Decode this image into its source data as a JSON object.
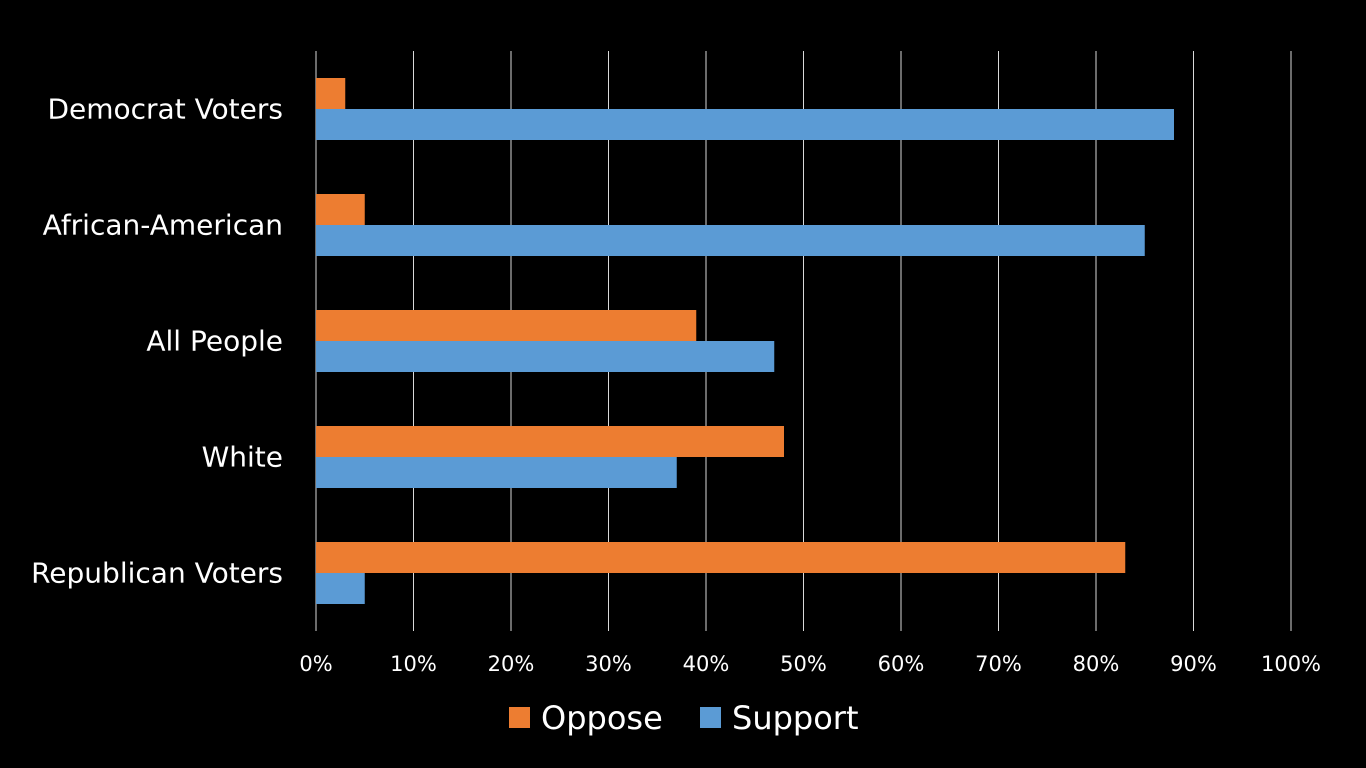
{
  "chart_data": {
    "type": "bar",
    "orientation": "horizontal",
    "categories": [
      "Democrat Voters",
      "African-American",
      "All People",
      "White",
      "Republican Voters"
    ],
    "series": [
      {
        "name": "Oppose",
        "color": "#ed7d31",
        "values": [
          3,
          5,
          39,
          48,
          83
        ]
      },
      {
        "name": "Support",
        "color": "#5b9bd5",
        "values": [
          88,
          85,
          47,
          37,
          5
        ]
      }
    ],
    "x_ticks": [
      "0%",
      "10%",
      "20%",
      "30%",
      "40%",
      "50%",
      "60%",
      "70%",
      "80%",
      "90%",
      "100%"
    ],
    "xlim": [
      0,
      100
    ],
    "unit": "%",
    "grid": "vertical",
    "legend_position": "bottom",
    "title": "",
    "xlabel": "",
    "ylabel": ""
  },
  "colors": {
    "background": "#000000",
    "text": "#ffffff",
    "grid": "#d9d9d9"
  }
}
